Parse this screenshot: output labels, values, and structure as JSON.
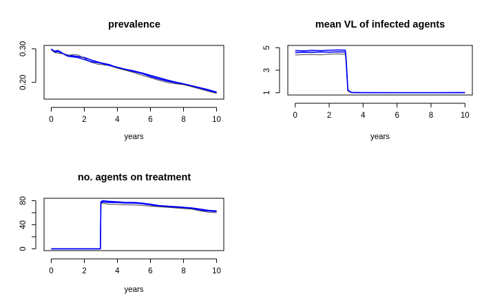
{
  "chart_data": [
    {
      "type": "line",
      "title": "prevalence",
      "xlabel": "years",
      "ylabel": "",
      "xlim": [
        0,
        10
      ],
      "ylim": [
        0.15,
        0.31
      ],
      "xticks": [
        "0",
        "2",
        "4",
        "6",
        "8",
        "10"
      ],
      "xtick_values": [
        0,
        2,
        4,
        6,
        8,
        10
      ],
      "yticks": [
        "0.20",
        "0.30"
      ],
      "ytick_values": [
        0.2,
        0.3
      ],
      "grid": false,
      "colors": {
        "primary": "#0000ff",
        "secondary": "#444444"
      },
      "series": [
        {
          "x": [
            0,
            0.2,
            0.4,
            0.6,
            0.8,
            1.0,
            1.3,
            1.6,
            2.0,
            2.4,
            2.8,
            3.0,
            3.5,
            4.0,
            4.5,
            5.0,
            5.5,
            6.0,
            6.5,
            7.0,
            7.5,
            8.0,
            8.5,
            9.0,
            9.5,
            10.0
          ],
          "y": [
            0.3,
            0.29,
            0.292,
            0.288,
            0.284,
            0.281,
            0.279,
            0.277,
            0.274,
            0.267,
            0.261,
            0.258,
            0.253,
            0.244,
            0.238,
            0.232,
            0.226,
            0.217,
            0.21,
            0.204,
            0.199,
            0.195,
            0.189,
            0.183,
            0.176,
            0.169
          ]
        },
        {
          "x": [
            0,
            0.2,
            0.4,
            0.6,
            0.8,
            1.0,
            1.3,
            1.6,
            2.0,
            2.4,
            2.8,
            3.0,
            3.5,
            4.0,
            4.5,
            5.0,
            5.5,
            6.0,
            6.5,
            7.0,
            7.5,
            8.0,
            8.5,
            9.0,
            9.5,
            10.0
          ],
          "y": [
            0.297,
            0.289,
            0.287,
            0.286,
            0.285,
            0.28,
            0.283,
            0.282,
            0.272,
            0.26,
            0.254,
            0.253,
            0.25,
            0.242,
            0.236,
            0.229,
            0.221,
            0.214,
            0.206,
            0.2,
            0.196,
            0.193,
            0.187,
            0.18,
            0.173,
            0.167
          ]
        },
        {
          "x": [
            0,
            0.2,
            0.4,
            0.6,
            0.8,
            1.0,
            1.3,
            1.6,
            2.0,
            2.4,
            2.8,
            3.0,
            3.5,
            4.0,
            4.5,
            5.0,
            5.5,
            6.0,
            6.5,
            7.0,
            7.5,
            8.0,
            8.5,
            9.0,
            9.5,
            10.0
          ],
          "y": [
            0.299,
            0.293,
            0.295,
            0.29,
            0.283,
            0.278,
            0.276,
            0.274,
            0.268,
            0.262,
            0.259,
            0.257,
            0.251,
            0.245,
            0.239,
            0.234,
            0.228,
            0.221,
            0.214,
            0.207,
            0.201,
            0.196,
            0.19,
            0.184,
            0.178,
            0.171
          ]
        }
      ]
    },
    {
      "type": "line",
      "title": "mean VL of infected agents",
      "xlabel": "years",
      "ylabel": "",
      "xlim": [
        0,
        10
      ],
      "ylim": [
        0.8,
        5.2
      ],
      "xticks": [
        "0",
        "2",
        "4",
        "6",
        "8",
        "10"
      ],
      "xtick_values": [
        0,
        2,
        4,
        6,
        8,
        10
      ],
      "yticks": [
        "1",
        "3",
        "5"
      ],
      "ytick_values": [
        1,
        3,
        5
      ],
      "grid": false,
      "colors": {
        "primary": "#0000ff",
        "secondary": "#444444"
      },
      "series": [
        {
          "x": [
            0,
            0.5,
            1.0,
            1.5,
            2.0,
            2.5,
            2.95,
            3.0,
            3.1,
            3.3,
            4.0,
            6.0,
            8.0,
            10.0
          ],
          "y": [
            4.55,
            4.6,
            4.58,
            4.62,
            4.6,
            4.63,
            4.62,
            3.8,
            1.2,
            1.02,
            1.0,
            1.0,
            1.0,
            1.02
          ]
        },
        {
          "x": [
            0,
            0.5,
            1.0,
            1.5,
            2.0,
            2.5,
            2.95,
            3.0,
            3.1,
            3.3,
            4.0,
            6.0,
            8.0,
            10.0
          ],
          "y": [
            4.35,
            4.38,
            4.4,
            4.37,
            4.42,
            4.45,
            4.43,
            3.6,
            1.15,
            1.01,
            1.0,
            1.0,
            1.0,
            1.0
          ]
        },
        {
          "x": [
            0,
            0.5,
            1.0,
            1.5,
            2.0,
            2.5,
            2.95,
            3.0,
            3.1,
            3.3,
            4.0,
            6.0,
            8.0,
            10.0
          ],
          "y": [
            4.75,
            4.72,
            4.76,
            4.73,
            4.77,
            4.8,
            4.78,
            4.0,
            1.25,
            1.03,
            1.01,
            1.0,
            1.0,
            1.01
          ]
        }
      ]
    },
    {
      "type": "line",
      "title": "no. agents on treatment",
      "xlabel": "years",
      "ylabel": "",
      "xlim": [
        0,
        10
      ],
      "ylim": [
        -3,
        84
      ],
      "xticks": [
        "0",
        "2",
        "4",
        "6",
        "8",
        "10"
      ],
      "xtick_values": [
        0,
        2,
        4,
        6,
        8,
        10
      ],
      "yticks": [
        "0",
        "40",
        "80"
      ],
      "ytick_values": [
        0,
        40,
        80
      ],
      "minor_yticks": [
        20,
        60
      ],
      "grid": false,
      "colors": {
        "primary": "#0000ff",
        "secondary": "#444444"
      },
      "series": [
        {
          "x": [
            0,
            2.97,
            3.0,
            3.1,
            3.5,
            4.0,
            4.5,
            5.0,
            5.5,
            6.0,
            6.5,
            7.0,
            7.5,
            8.0,
            8.5,
            9.0,
            9.5,
            10.0
          ],
          "y": [
            0,
            0,
            76,
            78,
            77,
            77,
            76,
            76,
            75,
            73,
            71,
            70,
            69,
            68,
            67,
            64,
            63,
            62
          ]
        },
        {
          "x": [
            0,
            2.97,
            3.0,
            3.1,
            3.5,
            4.0,
            4.5,
            5.0,
            5.5,
            6.0,
            6.5,
            7.0,
            7.5,
            8.0,
            8.5,
            9.0,
            9.5,
            10.0
          ],
          "y": [
            0,
            0,
            75,
            76,
            74,
            74,
            73,
            73,
            72,
            71,
            70,
            69,
            68,
            67,
            66,
            63,
            61,
            60
          ]
        },
        {
          "x": [
            0,
            2.97,
            3.0,
            3.1,
            3.5,
            4.0,
            4.5,
            5.0,
            5.5,
            6.0,
            6.5,
            7.0,
            7.5,
            8.0,
            8.5,
            9.0,
            9.5,
            10.0
          ],
          "y": [
            0,
            0,
            78,
            80,
            79,
            78,
            77,
            77,
            76,
            74,
            72,
            71,
            70,
            69,
            68,
            66,
            64,
            63
          ]
        }
      ]
    }
  ]
}
